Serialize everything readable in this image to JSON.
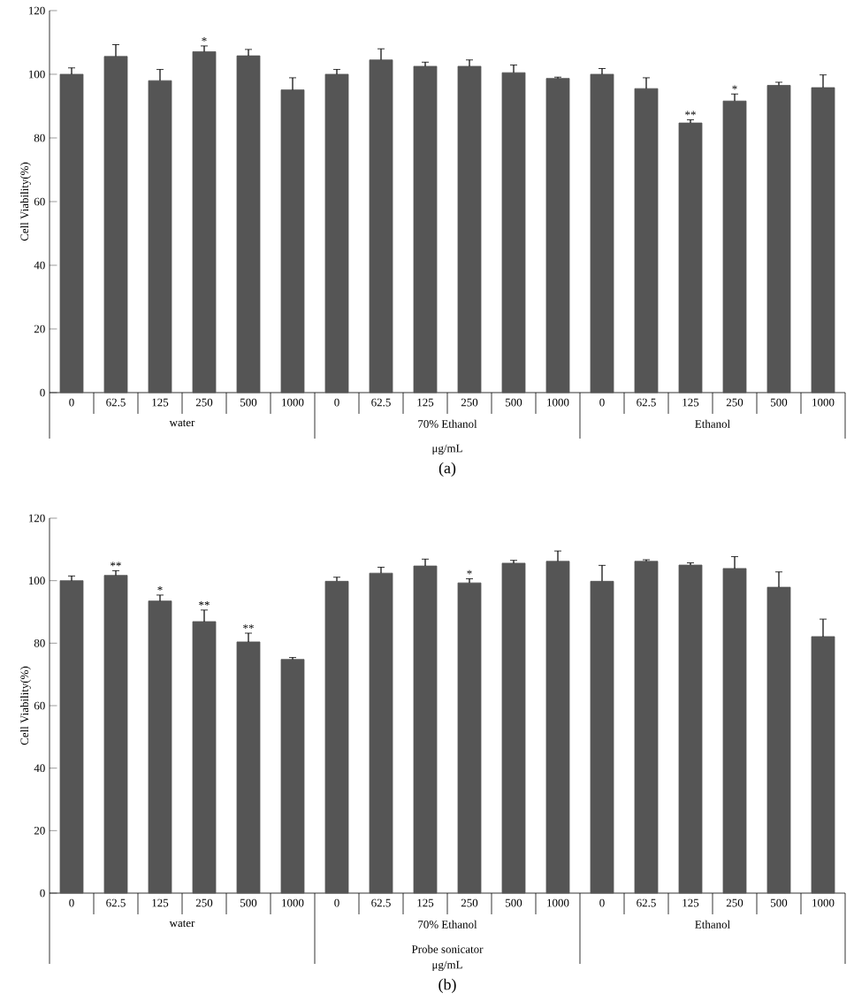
{
  "chart_data": [
    {
      "type": "bar",
      "title": "(a)",
      "xlabel": "μg/mL",
      "ylabel": "Cell Viability(%)",
      "color": "#555555",
      "categories": [
        "0",
        "62.5",
        "125",
        "250",
        "500",
        "1000",
        "0",
        "62.5",
        "125",
        "250",
        "500",
        "1000",
        "0",
        "62.5",
        "125",
        "250",
        "500",
        "1000"
      ],
      "values": [
        100,
        105.6,
        98,
        107.1,
        105.8,
        95.1,
        100,
        104.5,
        102.5,
        102.5,
        100.5,
        98.7,
        100,
        95.5,
        84.7,
        91.6,
        96.5,
        95.8
      ],
      "errors": [
        2,
        3.7,
        3.5,
        1.8,
        2,
        3.8,
        1.5,
        3.5,
        1.3,
        2,
        2.4,
        0.4,
        1.8,
        3.4,
        1,
        2.2,
        1,
        4
      ],
      "ylim": [
        0,
        120
      ],
      "yticks": [
        0,
        20,
        40,
        60,
        80,
        100,
        120
      ],
      "grid": false,
      "value_labels": [
        null,
        null,
        null,
        "*",
        null,
        null,
        null,
        null,
        null,
        null,
        null,
        null,
        null,
        null,
        "**",
        "*",
        null,
        null
      ],
      "annotations": [
        "water",
        "70% Ethanol",
        "Ethanol"
      ]
    },
    {
      "type": "bar",
      "title": "(b)",
      "subtitle": "Probe sonicator",
      "xlabel": "μg/mL",
      "ylabel": "Cell Viability(%)",
      "color": "#555555",
      "categories": [
        "0",
        "62.5",
        "125",
        "250",
        "500",
        "1000",
        "0",
        "62.5",
        "125",
        "250",
        "500",
        "1000",
        "0",
        "62.5",
        "125",
        "250",
        "500",
        "1000"
      ],
      "values": [
        100,
        101.7,
        93.5,
        86.9,
        80.4,
        74.8,
        99.8,
        102.4,
        104.7,
        99.3,
        105.6,
        106.2,
        99.8,
        106.2,
        105,
        103.9,
        97.9,
        82.1
      ],
      "errors": [
        1.5,
        1.5,
        1.9,
        3.7,
        2.8,
        0.6,
        1.3,
        1.9,
        2.2,
        1.3,
        0.9,
        3.3,
        5.1,
        0.5,
        0.7,
        3.8,
        4.9,
        5.6
      ],
      "ylim": [
        0,
        120
      ],
      "yticks": [
        0,
        20,
        40,
        60,
        80,
        100,
        120
      ],
      "grid": false,
      "value_labels": [
        null,
        "**",
        "*",
        "**",
        "**",
        null,
        null,
        null,
        null,
        "*",
        null,
        null,
        null,
        null,
        null,
        null,
        null,
        null
      ],
      "annotations": [
        "water",
        "70% Ethanol",
        "Ethanol"
      ]
    }
  ]
}
